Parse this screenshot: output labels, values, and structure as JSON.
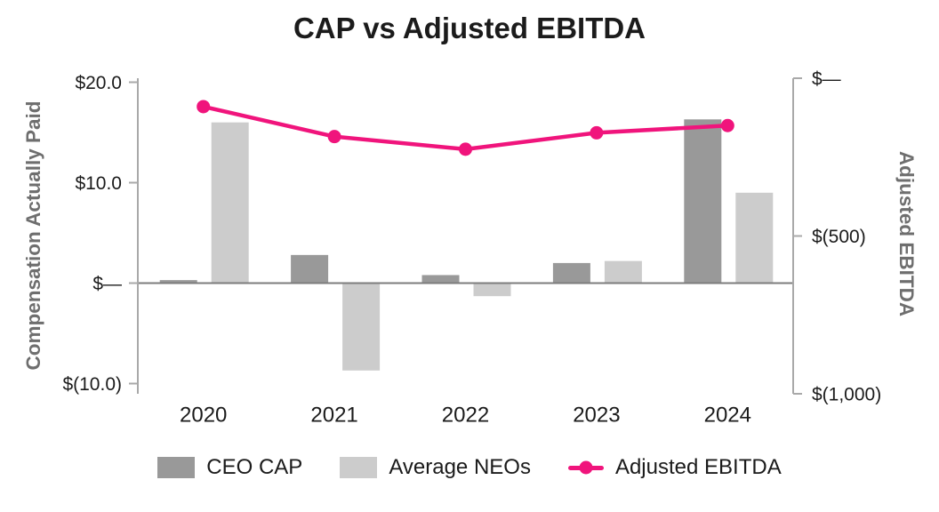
{
  "chart_data": {
    "type": "bar+line",
    "title": "CAP vs Adjusted EBITDA",
    "categories": [
      "2020",
      "2021",
      "2022",
      "2023",
      "2024"
    ],
    "series": [
      {
        "name": "CEO CAP",
        "type": "bar",
        "axis": "left",
        "color": "#999999",
        "values": [
          0.3,
          2.8,
          0.8,
          2.0,
          16.3
        ]
      },
      {
        "name": "Average NEOs",
        "type": "bar",
        "axis": "left",
        "color": "#cccccc",
        "values": [
          16.0,
          -8.7,
          -1.3,
          2.2,
          9.0
        ]
      },
      {
        "name": "Adjusted EBITDA",
        "type": "line",
        "axis": "right",
        "color": "#f0147c",
        "values": [
          -90,
          -185,
          -225,
          -173,
          -150
        ]
      }
    ],
    "left_axis": {
      "label": "Compensation Actually Paid",
      "ticks": [
        {
          "label": "$20.0",
          "value": 20
        },
        {
          "label": "$10.0",
          "value": 10
        },
        {
          "label": "$—",
          "value": 0
        },
        {
          "label": "$(10.0)",
          "value": -10
        }
      ],
      "ylim": [
        -11,
        20.5
      ]
    },
    "right_axis": {
      "label": "Adjusted EBITDA",
      "ticks": [
        {
          "label": "$—",
          "value": 0
        },
        {
          "label": "$(500)",
          "value": -500
        },
        {
          "label": "$(1,000)",
          "value": -1000
        }
      ],
      "ylim": [
        -1000,
        0
      ]
    },
    "legend": [
      "CEO CAP",
      "Average NEOs",
      "Adjusted EBITDA"
    ],
    "legend_position": "bottom",
    "grid": false,
    "colors": {
      "axis_line": "#a9a9a9",
      "zero_line": "#7d7d7d",
      "tick_text": "#1b1b1b",
      "axis_title_text": "#6e6e6e",
      "title_text": "#1b1b1b",
      "background": "#ffffff"
    }
  }
}
